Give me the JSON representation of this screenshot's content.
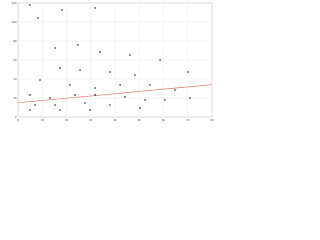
{
  "chart_data": {
    "type": "scatter",
    "x": [
      4.9,
      8.2,
      18.1,
      31.8,
      24.7,
      15.3,
      33.8,
      46.2,
      58.6,
      70.1,
      17.3,
      25.6,
      37.9,
      48.2,
      9.1,
      21.4,
      31.8,
      42.1,
      54.4,
      64.7,
      4.9,
      13.2,
      23.5,
      31.8,
      44.1,
      52.4,
      60.6,
      70.9,
      7.0,
      15.3,
      27.6,
      37.9,
      50.3,
      4.9,
      17.3,
      29.7
    ],
    "values": [
      117.9,
      104.2,
      112.6,
      114.7,
      75.8,
      72.6,
      68.4,
      65.3,
      60.0,
      47.4,
      51.6,
      49.5,
      47.4,
      44.2,
      38.9,
      33.7,
      30.5,
      33.7,
      33.7,
      28.4,
      23.2,
      20.0,
      23.2,
      23.2,
      21.1,
      17.9,
      17.9,
      20.0,
      12.6,
      12.6,
      14.7,
      12.6,
      9.5,
      7.4,
      7.4,
      7.4
    ],
    "color": "#3a3f5c",
    "trendline": {
      "color": "#e06060",
      "x": [
        0,
        80
      ],
      "values": [
        15,
        34
      ]
    },
    "xlim": [
      0,
      80
    ],
    "xticks": [
      0,
      10,
      20,
      30,
      40,
      50,
      60,
      70,
      80
    ],
    "ylim": [
      0,
      120
    ],
    "yticks": [
      0,
      20,
      40,
      60,
      80,
      100,
      120
    ],
    "grid": true
  }
}
